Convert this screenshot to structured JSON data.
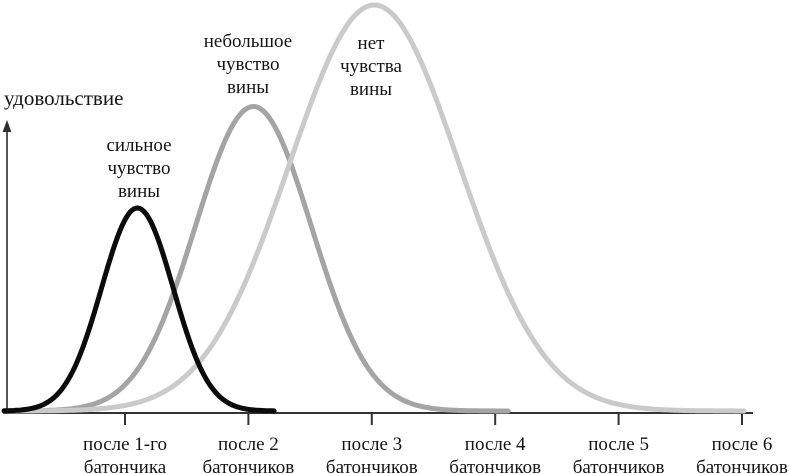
{
  "chart_data": {
    "type": "line",
    "title": "",
    "xlabel": "",
    "ylabel": "удовольствие",
    "grid": false,
    "legend_position": "none (annotations placed at each curve peak)",
    "x_tick_labels": [
      "после 1-го\nбатончика",
      "после 2\nбатончиков",
      "после 3\nбатончиков",
      "после 4\nбатончиков",
      "после 5\nбатончиков",
      "после 6\nбатончиков"
    ],
    "x_values_bars": [
      1,
      2,
      3,
      4,
      5,
      6
    ],
    "ylim_relative": [
      0,
      1.05
    ],
    "curve_shape": "gaussian",
    "series": [
      {
        "name": "сильное чувство вины",
        "annotation": "сильное\nчувство\nвины",
        "color": "#0b0b0b",
        "peak_x_bars": 1.1,
        "peak_pleasure_relative": 0.5,
        "sigma_bars": 0.29,
        "curve_start_bars": 0.02,
        "curve_end_bars": 2.21
      },
      {
        "name": "небольшое чувство вины",
        "annotation": "небольшое\nчувство\nвины",
        "color": "#a4a4a4",
        "peak_x_bars": 2.04,
        "peak_pleasure_relative": 0.75,
        "sigma_bars": 0.47,
        "curve_start_bars": 0.02,
        "curve_end_bars": 4.12
      },
      {
        "name": "нет чувства вины",
        "annotation": "нет\nчувства\nвины",
        "color": "#cacaca",
        "peak_x_bars": 3.02,
        "peak_pleasure_relative": 1.0,
        "sigma_bars": 0.69,
        "curve_end_bars": 6.02,
        "curve_start_bars": 0.02
      }
    ]
  }
}
